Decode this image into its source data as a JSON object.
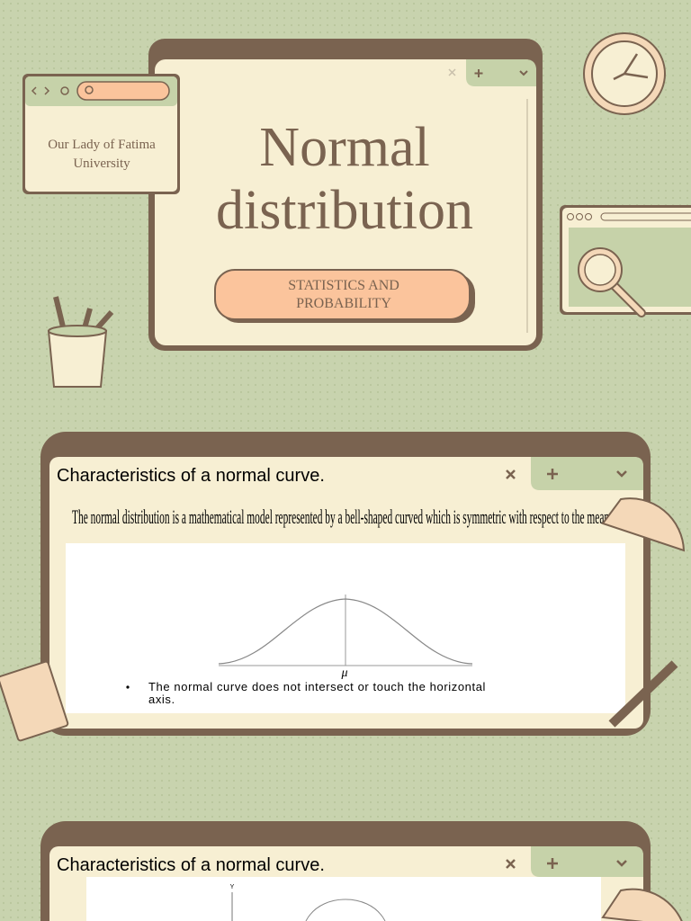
{
  "slides": [
    {
      "university_lines": [
        "Our Lady of Fatima",
        "University"
      ],
      "title_lines": [
        "Normal",
        "distribution"
      ],
      "button_lines": [
        "STATISTICS AND",
        "PROBABILITY"
      ]
    },
    {
      "heading": "Characteristics of a normal curve.",
      "description": "The normal distribution is a mathematical model represented by a bell-shaped curved which is symmetric with respect to the mean.",
      "mean_label": "μ",
      "bullet_lines": [
        "The normal curve does not intersect or touch the horizontal",
        "axis."
      ]
    },
    {
      "heading": "Characteristics of a normal curve.",
      "axis_label": "Y"
    }
  ]
}
